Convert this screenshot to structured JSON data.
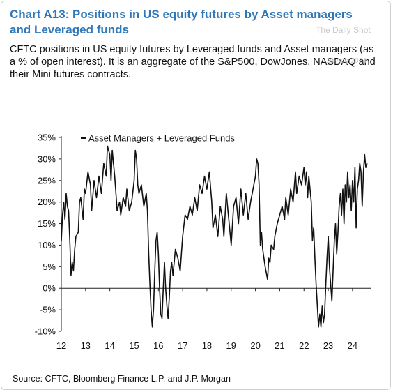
{
  "header": {
    "title": "Chart A13: Positions in US equity futures by Asset managers and Leveraged funds",
    "subtitle": "CFTC positions in US equity futures by Leveraged funds and Asset managers (as a % of open interest). It is an aggregate of the S&P500, DowJones, NASDAQ and their Mini futures contracts."
  },
  "watermark": {
    "brand": "The Daily Shot",
    "date": "19-Aug-2024"
  },
  "footer": {
    "source": "Source: CFTC, Bloomberg Finance L.P. and J.P. Morgan"
  },
  "chart_data": {
    "type": "line",
    "title": "Chart A13: Positions in US equity futures by Asset managers and Leveraged funds",
    "xlabel": "",
    "ylabel": "",
    "xlim": [
      2012,
      2024.75
    ],
    "ylim": [
      -10,
      35
    ],
    "y_unit": "%",
    "x_ticks": [
      2012,
      2013,
      2014,
      2015,
      2016,
      2017,
      2018,
      2019,
      2020,
      2021,
      2022,
      2023,
      2024
    ],
    "x_tick_labels": [
      "12",
      "13",
      "14",
      "15",
      "16",
      "17",
      "18",
      "19",
      "20",
      "21",
      "22",
      "23",
      "24"
    ],
    "y_ticks": [
      -10,
      -5,
      0,
      5,
      10,
      15,
      20,
      25,
      30,
      35
    ],
    "y_tick_labels": [
      "-10%",
      "-5%",
      "0%",
      "5%",
      "10%",
      "15%",
      "20%",
      "25%",
      "30%",
      "35%"
    ],
    "grid": false,
    "legend": {
      "position": "top-left"
    },
    "line_color": "#111111",
    "series": [
      {
        "name": "Asset Managers + Leveraged Funds",
        "points": [
          [
            2012.0,
            11
          ],
          [
            2012.05,
            17
          ],
          [
            2012.1,
            20
          ],
          [
            2012.15,
            16
          ],
          [
            2012.2,
            22
          ],
          [
            2012.25,
            19
          ],
          [
            2012.3,
            18
          ],
          [
            2012.35,
            11
          ],
          [
            2012.4,
            3
          ],
          [
            2012.45,
            6
          ],
          [
            2012.5,
            4
          ],
          [
            2012.55,
            9
          ],
          [
            2012.6,
            12
          ],
          [
            2012.7,
            13
          ],
          [
            2012.75,
            20
          ],
          [
            2012.8,
            21
          ],
          [
            2012.9,
            16
          ],
          [
            2012.95,
            23
          ],
          [
            2013.0,
            22
          ],
          [
            2013.1,
            27
          ],
          [
            2013.2,
            24
          ],
          [
            2013.25,
            18
          ],
          [
            2013.35,
            25
          ],
          [
            2013.45,
            21
          ],
          [
            2013.55,
            26
          ],
          [
            2013.65,
            22
          ],
          [
            2013.75,
            29
          ],
          [
            2013.85,
            26
          ],
          [
            2013.9,
            33
          ],
          [
            2014.0,
            31
          ],
          [
            2014.05,
            25
          ],
          [
            2014.1,
            32
          ],
          [
            2014.2,
            26
          ],
          [
            2014.25,
            22
          ],
          [
            2014.3,
            18
          ],
          [
            2014.4,
            20
          ],
          [
            2014.45,
            17
          ],
          [
            2014.55,
            21
          ],
          [
            2014.65,
            19
          ],
          [
            2014.7,
            23
          ],
          [
            2014.8,
            18
          ],
          [
            2014.9,
            20
          ],
          [
            2015.0,
            25
          ],
          [
            2015.05,
            32
          ],
          [
            2015.1,
            30
          ],
          [
            2015.15,
            24
          ],
          [
            2015.2,
            22
          ],
          [
            2015.3,
            24
          ],
          [
            2015.4,
            19
          ],
          [
            2015.5,
            22
          ],
          [
            2015.55,
            18
          ],
          [
            2015.6,
            8
          ],
          [
            2015.65,
            1
          ],
          [
            2015.7,
            -5
          ],
          [
            2015.75,
            -9
          ],
          [
            2015.8,
            -5
          ],
          [
            2015.85,
            4
          ],
          [
            2015.9,
            11
          ],
          [
            2015.95,
            13
          ],
          [
            2016.0,
            8
          ],
          [
            2016.05,
            0
          ],
          [
            2016.1,
            -6
          ],
          [
            2016.15,
            -7
          ],
          [
            2016.2,
            0
          ],
          [
            2016.25,
            6
          ],
          [
            2016.3,
            0
          ],
          [
            2016.35,
            -4
          ],
          [
            2016.4,
            -7
          ],
          [
            2016.45,
            -2
          ],
          [
            2016.5,
            4
          ],
          [
            2016.55,
            6
          ],
          [
            2016.6,
            3
          ],
          [
            2016.7,
            9
          ],
          [
            2016.8,
            7
          ],
          [
            2016.9,
            4
          ],
          [
            2017.0,
            12
          ],
          [
            2017.1,
            17
          ],
          [
            2017.2,
            16
          ],
          [
            2017.3,
            19
          ],
          [
            2017.4,
            17
          ],
          [
            2017.5,
            21
          ],
          [
            2017.6,
            18
          ],
          [
            2017.7,
            24
          ],
          [
            2017.8,
            22
          ],
          [
            2017.9,
            26
          ],
          [
            2018.0,
            23
          ],
          [
            2018.1,
            27
          ],
          [
            2018.2,
            20
          ],
          [
            2018.25,
            14
          ],
          [
            2018.35,
            17
          ],
          [
            2018.45,
            12
          ],
          [
            2018.55,
            19
          ],
          [
            2018.65,
            16
          ],
          [
            2018.7,
            12
          ],
          [
            2018.8,
            22
          ],
          [
            2018.9,
            16
          ],
          [
            2019.0,
            10
          ],
          [
            2019.1,
            19
          ],
          [
            2019.2,
            21
          ],
          [
            2019.3,
            15
          ],
          [
            2019.4,
            23
          ],
          [
            2019.5,
            17
          ],
          [
            2019.6,
            22
          ],
          [
            2019.7,
            16
          ],
          [
            2019.8,
            20
          ],
          [
            2019.9,
            23
          ],
          [
            2020.0,
            26
          ],
          [
            2020.05,
            30
          ],
          [
            2020.1,
            29
          ],
          [
            2020.15,
            24
          ],
          [
            2020.2,
            10
          ],
          [
            2020.25,
            13
          ],
          [
            2020.3,
            9
          ],
          [
            2020.4,
            5
          ],
          [
            2020.5,
            2
          ],
          [
            2020.55,
            7
          ],
          [
            2020.6,
            6
          ],
          [
            2020.65,
            10
          ],
          [
            2020.75,
            9
          ],
          [
            2020.8,
            12
          ],
          [
            2020.9,
            15
          ],
          [
            2021.0,
            17
          ],
          [
            2021.1,
            19
          ],
          [
            2021.2,
            16
          ],
          [
            2021.25,
            21
          ],
          [
            2021.35,
            17
          ],
          [
            2021.45,
            23
          ],
          [
            2021.55,
            20
          ],
          [
            2021.65,
            27
          ],
          [
            2021.7,
            22
          ],
          [
            2021.8,
            26
          ],
          [
            2021.9,
            24
          ],
          [
            2022.0,
            28
          ],
          [
            2022.05,
            24
          ],
          [
            2022.1,
            27
          ],
          [
            2022.15,
            21
          ],
          [
            2022.2,
            26
          ],
          [
            2022.3,
            20
          ],
          [
            2022.35,
            11
          ],
          [
            2022.4,
            14
          ],
          [
            2022.45,
            7
          ],
          [
            2022.5,
            1
          ],
          [
            2022.55,
            -4
          ],
          [
            2022.6,
            -9
          ],
          [
            2022.65,
            -6
          ],
          [
            2022.7,
            -9
          ],
          [
            2022.75,
            -4
          ],
          [
            2022.8,
            -8
          ],
          [
            2022.85,
            -6
          ],
          [
            2022.9,
            1
          ],
          [
            2022.95,
            7
          ],
          [
            2023.0,
            12
          ],
          [
            2023.05,
            5
          ],
          [
            2023.1,
            1
          ],
          [
            2023.15,
            -3
          ],
          [
            2023.2,
            4
          ],
          [
            2023.25,
            11
          ],
          [
            2023.3,
            15
          ],
          [
            2023.35,
            8
          ],
          [
            2023.4,
            13
          ],
          [
            2023.45,
            19
          ],
          [
            2023.5,
            22
          ],
          [
            2023.55,
            17
          ],
          [
            2023.6,
            23
          ],
          [
            2023.65,
            15
          ],
          [
            2023.7,
            24
          ],
          [
            2023.75,
            20
          ],
          [
            2023.8,
            27
          ],
          [
            2023.85,
            21
          ],
          [
            2023.9,
            24
          ],
          [
            2023.95,
            18
          ],
          [
            2024.0,
            25
          ],
          [
            2024.05,
            20
          ],
          [
            2024.1,
            28
          ],
          [
            2024.15,
            14
          ],
          [
            2024.2,
            23
          ],
          [
            2024.25,
            25
          ],
          [
            2024.3,
            29
          ],
          [
            2024.35,
            27
          ],
          [
            2024.4,
            19
          ],
          [
            2024.45,
            27
          ],
          [
            2024.5,
            31
          ],
          [
            2024.55,
            28
          ],
          [
            2024.6,
            29
          ]
        ]
      }
    ]
  }
}
